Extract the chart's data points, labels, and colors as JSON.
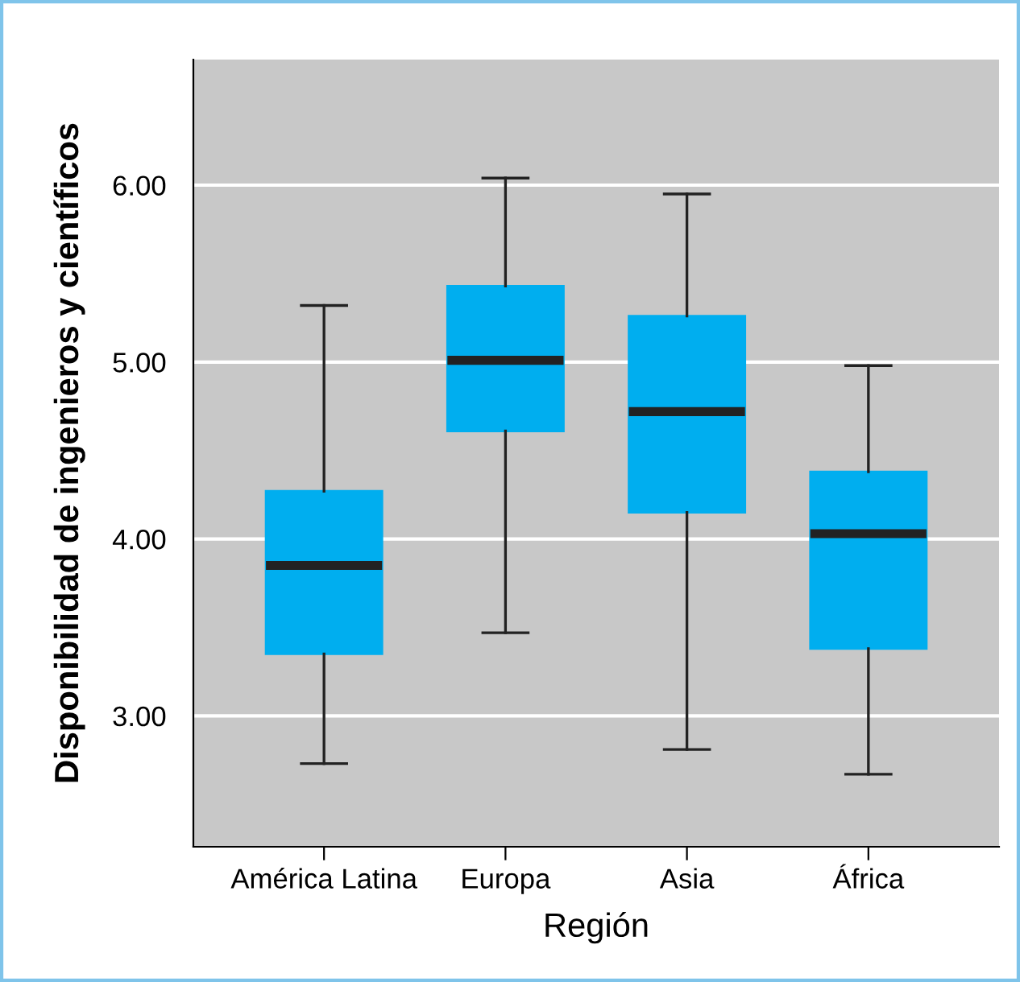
{
  "chart_data": {
    "type": "box",
    "xlabel": "Región",
    "ylabel": "Disponibilidad de ingenieros y científicos",
    "categories": [
      "América Latina",
      "Europa",
      "Asia",
      "África"
    ],
    "boxes": [
      {
        "low": 2.73,
        "q1": 3.35,
        "median": 3.85,
        "q3": 4.27,
        "high": 5.32
      },
      {
        "low": 3.47,
        "q1": 4.61,
        "median": 5.01,
        "q3": 5.43,
        "high": 6.04
      },
      {
        "low": 2.81,
        "q1": 4.15,
        "median": 4.72,
        "q3": 5.26,
        "high": 5.95
      },
      {
        "low": 2.67,
        "q1": 3.38,
        "median": 4.03,
        "q3": 4.38,
        "high": 4.98
      }
    ],
    "color": "#00aeef",
    "ylim": [
      2.26,
      6.71
    ],
    "yticks": [
      {
        "value": 3,
        "label": "3.00"
      },
      {
        "value": 4,
        "label": "4.00"
      },
      {
        "value": 5,
        "label": "5.00"
      },
      {
        "value": 6,
        "label": "6.00"
      }
    ],
    "grid": "y",
    "legend": false
  }
}
